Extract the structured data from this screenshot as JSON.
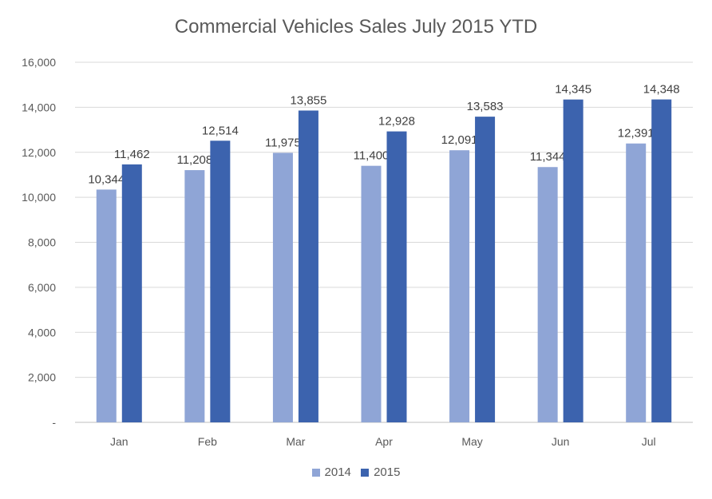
{
  "chart_data": {
    "type": "bar",
    "title": "Commercial Vehicles Sales July 2015 YTD",
    "xlabel": "",
    "ylabel": "",
    "categories": [
      "Jan",
      "Feb",
      "Mar",
      "Apr",
      "May",
      "Jun",
      "Jul"
    ],
    "series": [
      {
        "name": "2014",
        "values": [
          10344,
          11208,
          11975,
          11400,
          12091,
          11344,
          12391
        ],
        "labels": [
          "10,344",
          "11,208",
          "11,975",
          "11,400",
          "12,091",
          "11,344",
          "12,391"
        ],
        "color": "#8FA5D6"
      },
      {
        "name": "2015",
        "values": [
          11462,
          12514,
          13855,
          12928,
          13583,
          14345,
          14348
        ],
        "labels": [
          "11,462",
          "12,514",
          "13,855",
          "12,928",
          "13,583",
          "14,345",
          "14,348"
        ],
        "color": "#3C63AE"
      }
    ],
    "ylim": [
      0,
      16000
    ],
    "yticks": [
      0,
      2000,
      4000,
      6000,
      8000,
      10000,
      12000,
      14000,
      16000
    ],
    "ytick_labels": [
      "-",
      "2,000",
      "4,000",
      "6,000",
      "8,000",
      "10,000",
      "12,000",
      "14,000",
      "16,000"
    ],
    "grid": true,
    "legend_position": "bottom"
  }
}
